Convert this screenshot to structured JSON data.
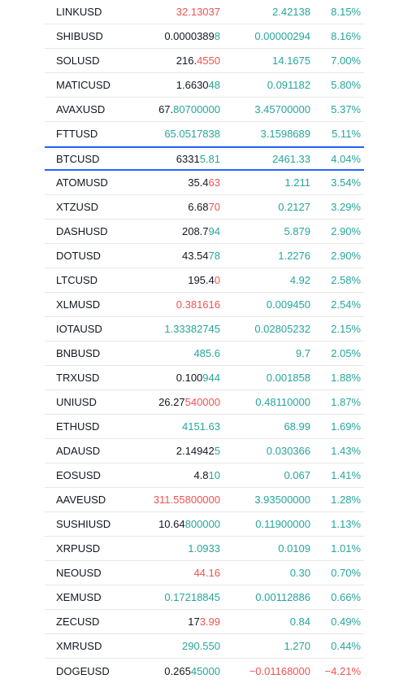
{
  "watchlist": {
    "colors": {
      "up": "#26a69a",
      "down": "#ef5350",
      "neutral": "#131722",
      "highlight_border": "#2962ff",
      "row_divider": "#e6e7ea"
    },
    "rows": [
      {
        "symbol": "LINKUSD",
        "last_base": "",
        "last_delta": "32.13037",
        "last_dir": "down",
        "change": "2.42138",
        "change_dir": "up",
        "change_pct": "8.15%",
        "pct_dir": "up"
      },
      {
        "symbol": "SHIBUSD",
        "last_base": "0.0000389",
        "last_delta": "8",
        "last_dir": "up",
        "change": "0.00000294",
        "change_dir": "up",
        "change_pct": "8.16%",
        "pct_dir": "up"
      },
      {
        "symbol": "SOLUSD",
        "last_base": "216.",
        "last_delta": "4550",
        "last_dir": "down",
        "change": "14.1675",
        "change_dir": "up",
        "change_pct": "7.00%",
        "pct_dir": "up"
      },
      {
        "symbol": "MATICUSD",
        "last_base": "1.6630",
        "last_delta": "48",
        "last_dir": "up",
        "change": "0.091182",
        "change_dir": "up",
        "change_pct": "5.80%",
        "pct_dir": "up"
      },
      {
        "symbol": "AVAXUSD",
        "last_base": "67.",
        "last_delta": "80700000",
        "last_dir": "up",
        "change": "3.45700000",
        "change_dir": "up",
        "change_pct": "5.37%",
        "pct_dir": "up"
      },
      {
        "symbol": "FTTUSD",
        "last_base": "",
        "last_delta": "65.0517838",
        "last_dir": "up",
        "change": "3.1598689",
        "change_dir": "up",
        "change_pct": "5.11%",
        "pct_dir": "up"
      },
      {
        "symbol": "BTCUSD",
        "last_base": "6331",
        "last_delta": "5.81",
        "last_dir": "up",
        "change": "2461.33",
        "change_dir": "up",
        "change_pct": "4.04%",
        "pct_dir": "up",
        "highlighted": true
      },
      {
        "symbol": "ATOMUSD",
        "last_base": "35.4",
        "last_delta": "63",
        "last_dir": "down",
        "change": "1.211",
        "change_dir": "up",
        "change_pct": "3.54%",
        "pct_dir": "up"
      },
      {
        "symbol": "XTZUSD",
        "last_base": "6.68",
        "last_delta": "70",
        "last_dir": "down",
        "change": "0.2127",
        "change_dir": "up",
        "change_pct": "3.29%",
        "pct_dir": "up"
      },
      {
        "symbol": "DASHUSD",
        "last_base": "208.7",
        "last_delta": "94",
        "last_dir": "up",
        "change": "5.879",
        "change_dir": "up",
        "change_pct": "2.90%",
        "pct_dir": "up"
      },
      {
        "symbol": "DOTUSD",
        "last_base": "43.54",
        "last_delta": "78",
        "last_dir": "up",
        "change": "1.2276",
        "change_dir": "up",
        "change_pct": "2.90%",
        "pct_dir": "up"
      },
      {
        "symbol": "LTCUSD",
        "last_base": "195.4",
        "last_delta": "0",
        "last_dir": "down",
        "change": "4.92",
        "change_dir": "up",
        "change_pct": "2.58%",
        "pct_dir": "up"
      },
      {
        "symbol": "XLMUSD",
        "last_base": "",
        "last_delta": "0.381616",
        "last_dir": "down",
        "change": "0.009450",
        "change_dir": "up",
        "change_pct": "2.54%",
        "pct_dir": "up"
      },
      {
        "symbol": "IOTAUSD",
        "last_base": "",
        "last_delta": "1.33382745",
        "last_dir": "up",
        "change": "0.02805232",
        "change_dir": "up",
        "change_pct": "2.15%",
        "pct_dir": "up"
      },
      {
        "symbol": "BNBUSD",
        "last_base": "",
        "last_delta": "485.6",
        "last_dir": "up",
        "change": "9.7",
        "change_dir": "up",
        "change_pct": "2.05%",
        "pct_dir": "up"
      },
      {
        "symbol": "TRXUSD",
        "last_base": "0.100",
        "last_delta": "944",
        "last_dir": "up",
        "change": "0.001858",
        "change_dir": "up",
        "change_pct": "1.88%",
        "pct_dir": "up"
      },
      {
        "symbol": "UNIUSD",
        "last_base": "26.27",
        "last_delta": "540000",
        "last_dir": "down",
        "change": "0.48110000",
        "change_dir": "up",
        "change_pct": "1.87%",
        "pct_dir": "up"
      },
      {
        "symbol": "ETHUSD",
        "last_base": "",
        "last_delta": "4151.63",
        "last_dir": "up",
        "change": "68.99",
        "change_dir": "up",
        "change_pct": "1.69%",
        "pct_dir": "up"
      },
      {
        "symbol": "ADAUSD",
        "last_base": "2.14942",
        "last_delta": "5",
        "last_dir": "up",
        "change": "0.030366",
        "change_dir": "up",
        "change_pct": "1.43%",
        "pct_dir": "up"
      },
      {
        "symbol": "EOSUSD",
        "last_base": "4.8",
        "last_delta": "10",
        "last_dir": "up",
        "change": "0.067",
        "change_dir": "up",
        "change_pct": "1.41%",
        "pct_dir": "up"
      },
      {
        "symbol": "AAVEUSD",
        "last_base": "",
        "last_delta": "311.55800000",
        "last_dir": "down",
        "change": "3.93500000",
        "change_dir": "up",
        "change_pct": "1.28%",
        "pct_dir": "up"
      },
      {
        "symbol": "SUSHIUSD",
        "last_base": "10.64",
        "last_delta": "800000",
        "last_dir": "up",
        "change": "0.11900000",
        "change_dir": "up",
        "change_pct": "1.13%",
        "pct_dir": "up"
      },
      {
        "symbol": "XRPUSD",
        "last_base": "",
        "last_delta": "1.0933",
        "last_dir": "up",
        "change": "0.0109",
        "change_dir": "up",
        "change_pct": "1.01%",
        "pct_dir": "up"
      },
      {
        "symbol": "NEOUSD",
        "last_base": "",
        "last_delta": "44.16",
        "last_dir": "down",
        "change": "0.30",
        "change_dir": "up",
        "change_pct": "0.70%",
        "pct_dir": "up"
      },
      {
        "symbol": "XEMUSD",
        "last_base": "",
        "last_delta": "0.17218845",
        "last_dir": "up",
        "change": "0.00112886",
        "change_dir": "up",
        "change_pct": "0.66%",
        "pct_dir": "up"
      },
      {
        "symbol": "ZECUSD",
        "last_base": "17",
        "last_delta": "3.99",
        "last_dir": "down",
        "change": "0.84",
        "change_dir": "up",
        "change_pct": "0.49%",
        "pct_dir": "up"
      },
      {
        "symbol": "XMRUSD",
        "last_base": "",
        "last_delta": "290.550",
        "last_dir": "up",
        "change": "1.270",
        "change_dir": "up",
        "change_pct": "0.44%",
        "pct_dir": "up"
      },
      {
        "symbol": "DOGEUSD",
        "last_base": "0.265",
        "last_delta": "45000",
        "last_dir": "up",
        "change": "−0.01168000",
        "change_dir": "down",
        "change_pct": "−4.21%",
        "pct_dir": "down"
      }
    ]
  }
}
